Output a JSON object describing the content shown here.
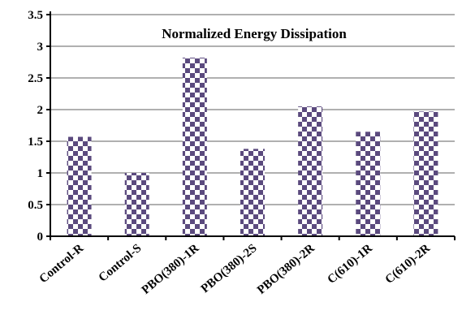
{
  "chart_data": {
    "type": "bar",
    "title": "Normalized Energy Dissipation",
    "xlabel": "",
    "ylabel": "",
    "categories": [
      "Control-R",
      "Control-S",
      "PBO(380)-1R",
      "PBO(380)-2S",
      "PBO(380)-2R",
      "C(610)-1R",
      "C(610)-2R"
    ],
    "values": [
      1.57,
      1.0,
      2.82,
      1.38,
      2.05,
      1.65,
      1.97
    ],
    "ylim": [
      0,
      3.5
    ],
    "yticks": [
      "0",
      "0.5",
      "1",
      "1.5",
      "2",
      "2.5",
      "3",
      "3.5"
    ],
    "grid": true,
    "legend": "none",
    "colors": {
      "bar_dark": "#5b4a7e",
      "bar_light": "#ffffff",
      "grid": "#808080",
      "axis": "#000000"
    },
    "bar_pattern": "checkerboard"
  }
}
